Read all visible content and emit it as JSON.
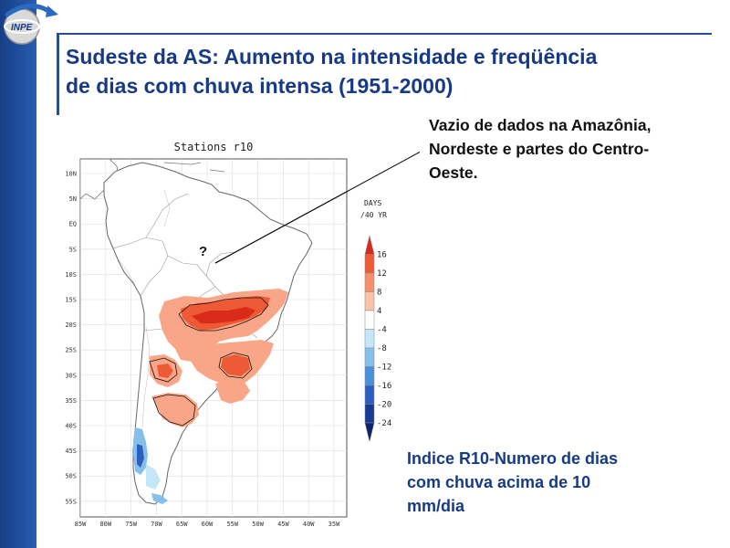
{
  "logo": {
    "text": "INPE"
  },
  "title": {
    "line1": "Sudeste da AS:  Aumento na intensidade e freqüência",
    "line2": "de dias com chuva intensa (1951-2000)"
  },
  "note": {
    "line1": "Vazio de dados na Amazônia,",
    "line2": "Nordeste e partes do Centro-",
    "line3": "Oeste."
  },
  "question_mark": "?",
  "caption": {
    "line1": "Indice R10-Numero de dias",
    "line2": "com chuva acima de 10",
    "line3": "mm/dia"
  },
  "map": {
    "title": "Stations r10",
    "lat_labels": [
      "10N",
      "5N",
      "EQ",
      "5S",
      "10S",
      "15S",
      "20S",
      "25S",
      "30S",
      "35S",
      "40S",
      "45S",
      "50S",
      "55S"
    ],
    "lon_labels": [
      "85W",
      "80W",
      "75W",
      "70W",
      "65W",
      "60W",
      "55W",
      "50W",
      "45W",
      "40W",
      "35W"
    ]
  },
  "colorbar": {
    "unit_line1": "DAYS",
    "unit_line2": "/40 YR",
    "labels": [
      "16",
      "12",
      "8",
      "4",
      "-4",
      "-8",
      "-12",
      "-16",
      "-20",
      "-24"
    ],
    "colors": [
      "#d92b1a",
      "#ee5a35",
      "#f58f6c",
      "#f9c3ab",
      "#ffffff",
      "#c4e6f7",
      "#86bfea",
      "#4a8fd9",
      "#2a5fbf",
      "#173a94",
      "#0d2470"
    ]
  },
  "colors": {
    "title": "#173a86",
    "sidebar": "#1f4f9e",
    "increase": "#f58f6c",
    "decrease": "#2a5fbf"
  }
}
